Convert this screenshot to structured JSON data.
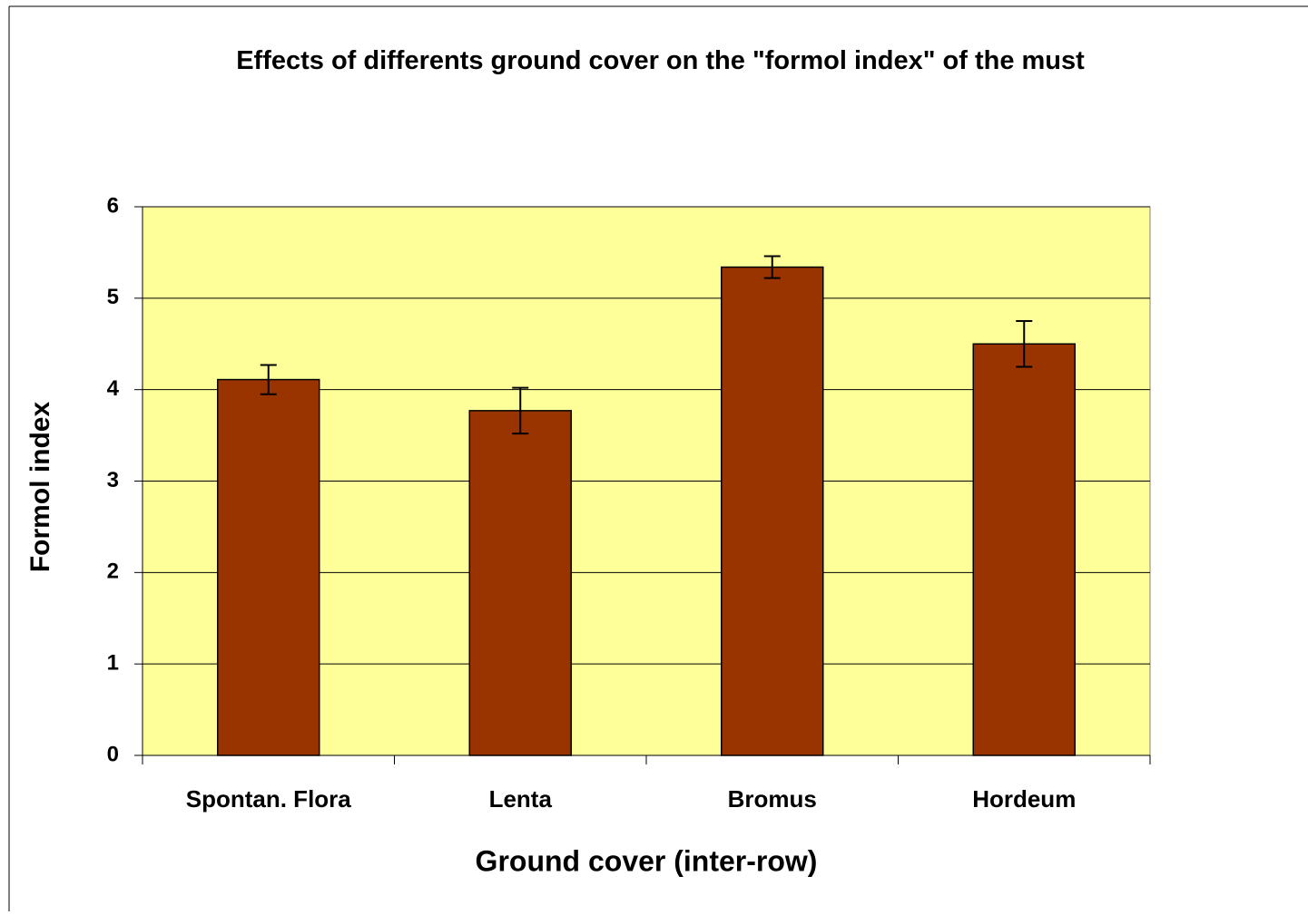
{
  "chart_data": {
    "type": "bar",
    "title": "Effects of differents ground cover on the \"formol index\" of the must",
    "x_label": "Ground cover (inter-row)",
    "y_label": "Formol index",
    "categories": [
      "Spontan. Flora",
      "Lenta",
      "Bromus",
      "Hordeum"
    ],
    "values": [
      4.11,
      3.77,
      5.34,
      4.5
    ],
    "errors": [
      0.16,
      0.25,
      0.12,
      0.25
    ],
    "color": "#993300",
    "background": "#ffff99",
    "ylim": [
      0,
      6
    ],
    "yticks": [
      0,
      1,
      2,
      3,
      4,
      5,
      6
    ],
    "grid": true
  }
}
